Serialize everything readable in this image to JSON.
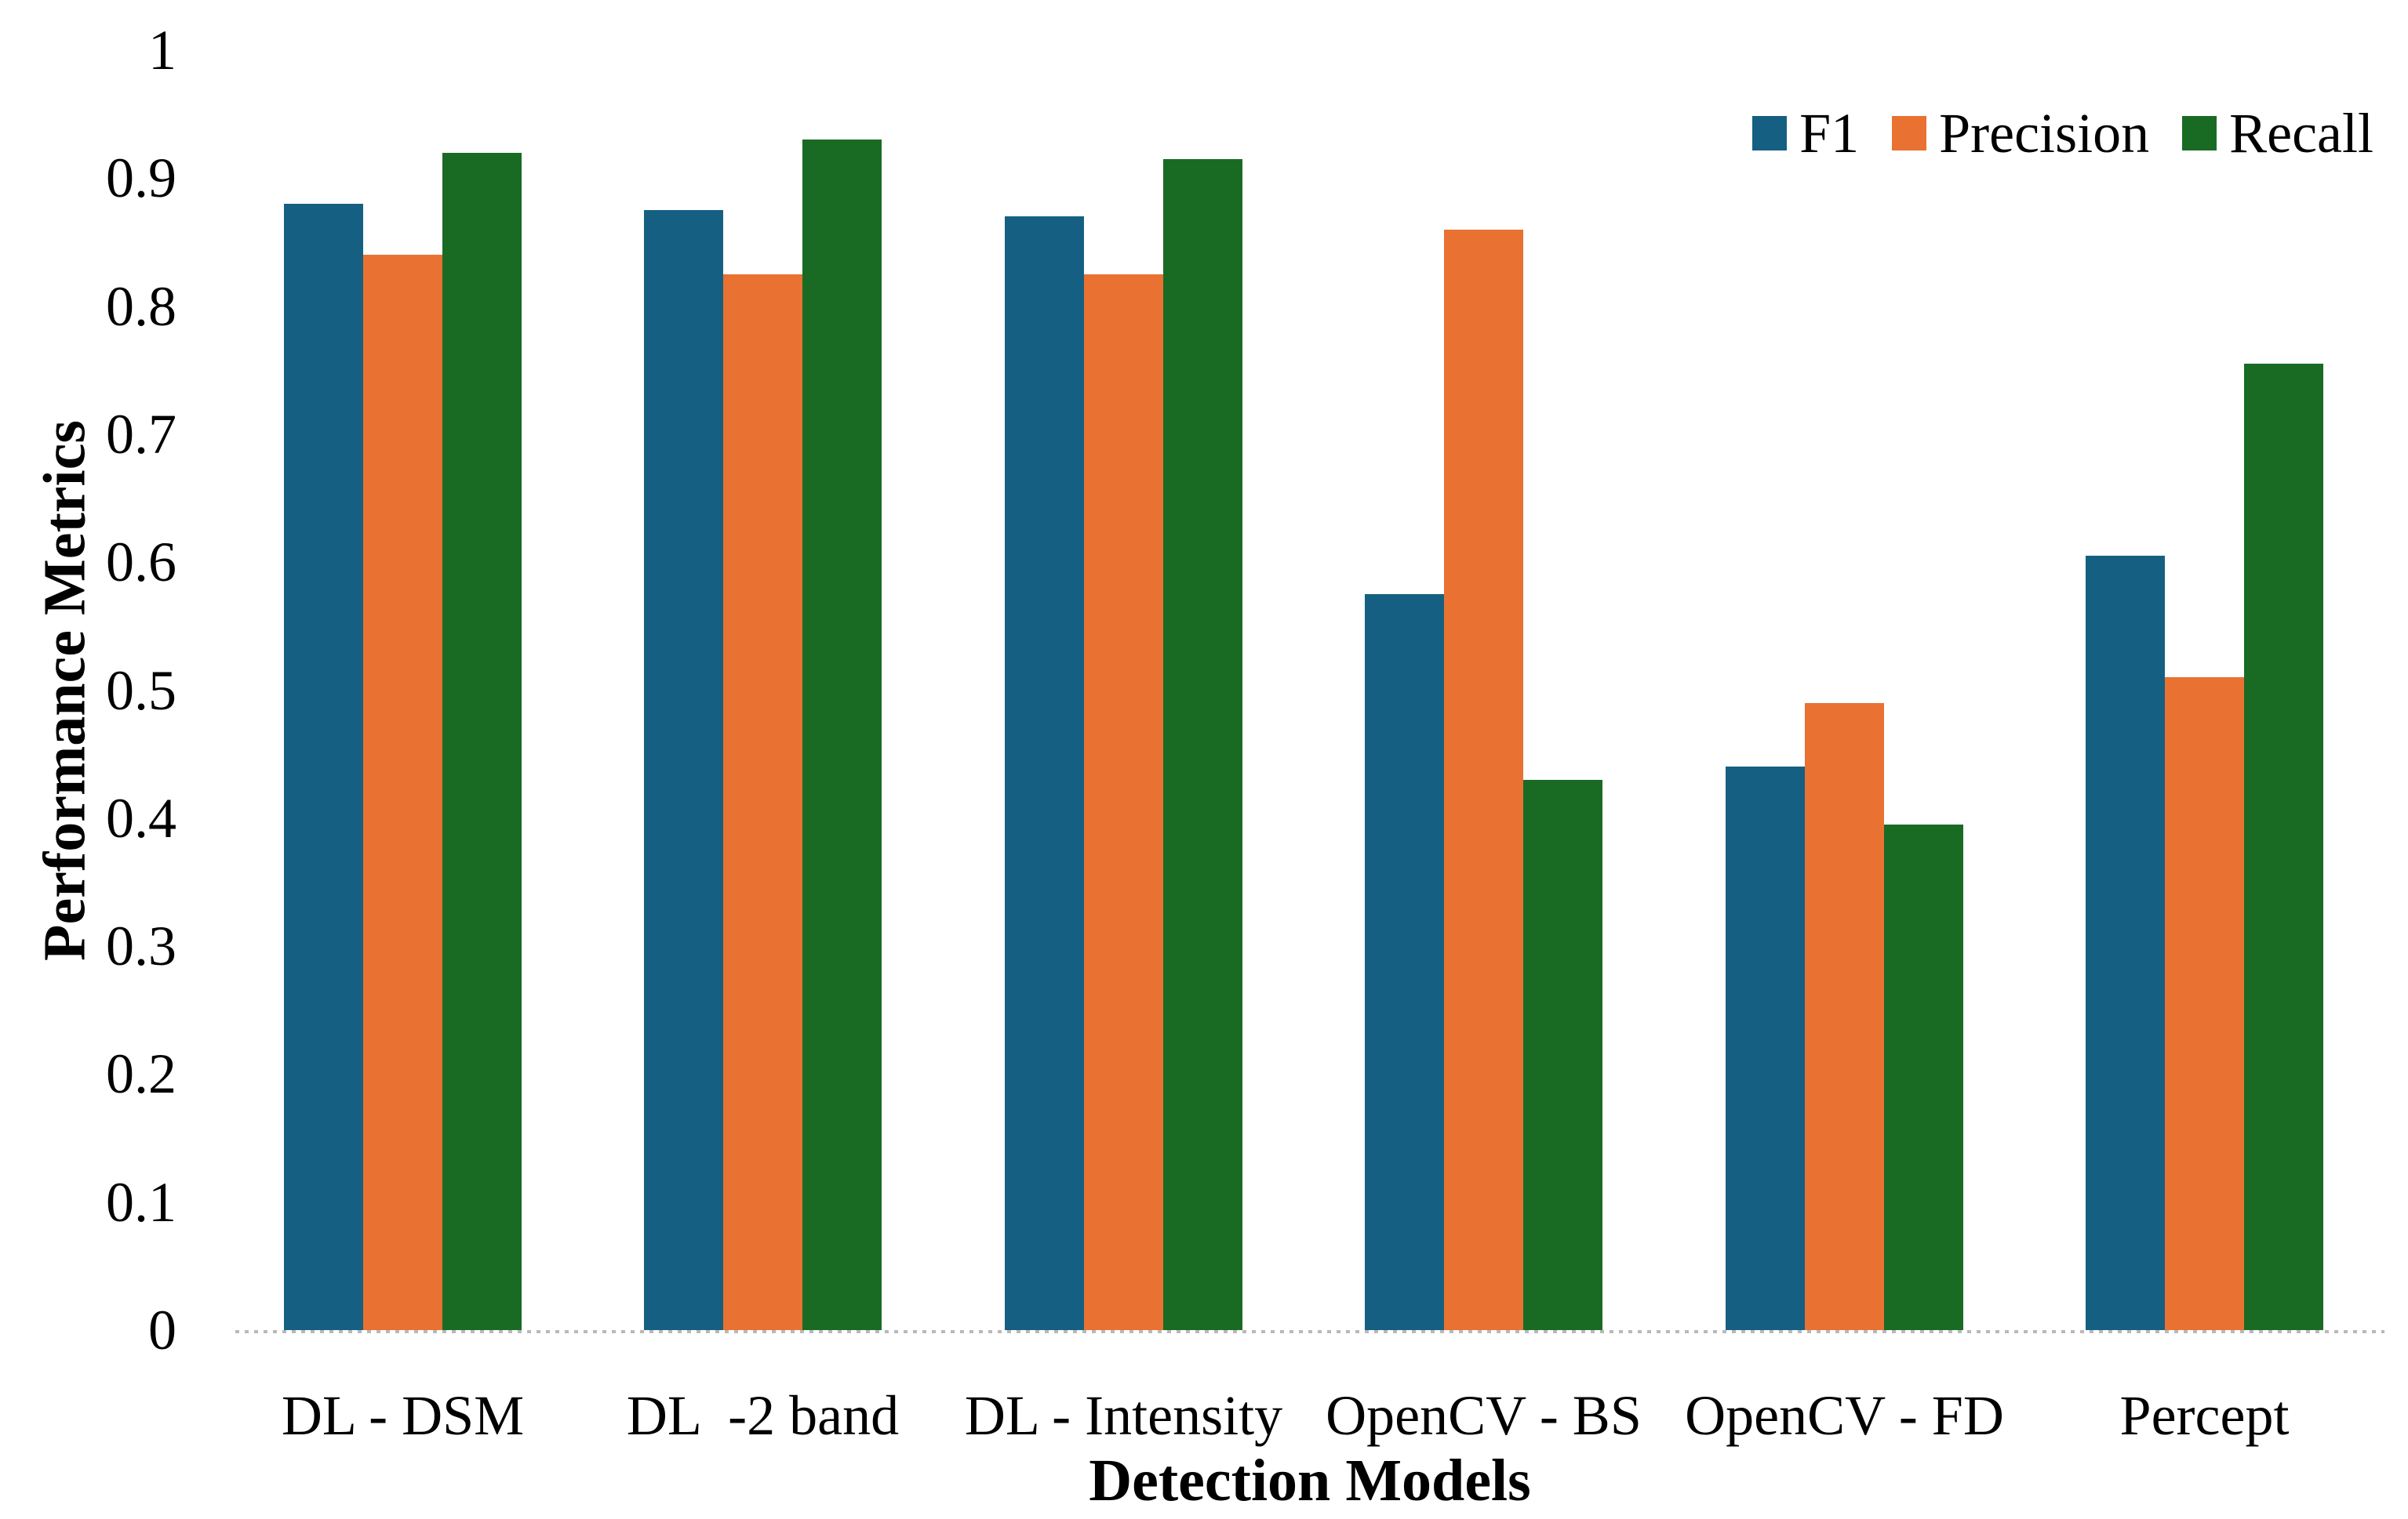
{
  "chart_data": {
    "type": "bar",
    "title": "",
    "categories": [
      "DL - DSM",
      "DL  -2 band",
      "DL - Intensity",
      "OpenCV - BS",
      "OpenCV - FD",
      "Percept"
    ],
    "series": [
      {
        "name": "F1",
        "color": "#156082",
        "values": [
          0.88,
          0.875,
          0.87,
          0.575,
          0.44,
          0.605
        ]
      },
      {
        "name": "Precision",
        "color": "#E97132",
        "values": [
          0.84,
          0.825,
          0.825,
          0.86,
          0.49,
          0.51
        ]
      },
      {
        "name": "Recall",
        "color": "#196B24",
        "values": [
          0.92,
          0.93,
          0.915,
          0.43,
          0.395,
          0.755
        ]
      }
    ],
    "xlabel": "Detection Models",
    "ylabel": "Performance Metrics",
    "ylim": [
      0,
      1
    ],
    "yticks": [
      0,
      0.1,
      0.2,
      0.3,
      0.4,
      0.5,
      0.6,
      0.7,
      0.8,
      0.9,
      1
    ],
    "ytick_labels": [
      "0",
      "0.1",
      "0.2",
      "0.3",
      "0.4",
      "0.5",
      "0.6",
      "0.7",
      "0.8",
      "0.9",
      "1"
    ],
    "legend_position": "top-right",
    "grid": "dotted baseline at 0 only",
    "text_color": "#000000",
    "baseline_dot_color": "#b9b9b9"
  }
}
